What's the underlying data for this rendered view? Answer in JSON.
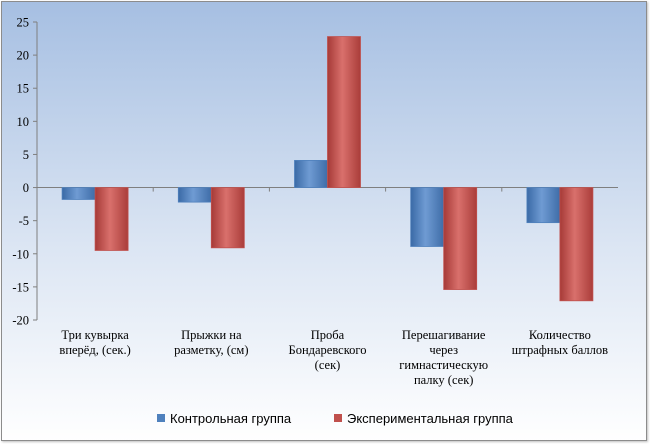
{
  "chart_data": {
    "type": "bar",
    "categories": [
      [
        "Три кувырка",
        "вперёд, (сек.)"
      ],
      [
        "Прыжки на",
        "разметку, (см)"
      ],
      [
        "Проба",
        "Бондаревского",
        "(сек)"
      ],
      [
        "Перешагивание",
        "через",
        "гимнастическую",
        "палку (сек)"
      ],
      [
        "Количество",
        "штрафных баллов"
      ]
    ],
    "series": [
      {
        "name": "Контрольная группа",
        "values": [
          -1.8,
          -2.2,
          4.1,
          -8.9,
          -5.3
        ],
        "color": "#4f81bd"
      },
      {
        "name": "Экспериментальная группа",
        "values": [
          -9.5,
          -9.1,
          22.8,
          -15.4,
          -17.1
        ],
        "color": "#c0504d"
      }
    ],
    "ylim": [
      -20,
      25
    ],
    "yticks": [
      -20,
      -15,
      -10,
      -5,
      0,
      5,
      10,
      15,
      20,
      25
    ],
    "grid": false,
    "legend": "bottom",
    "background": "#b8cce4"
  }
}
